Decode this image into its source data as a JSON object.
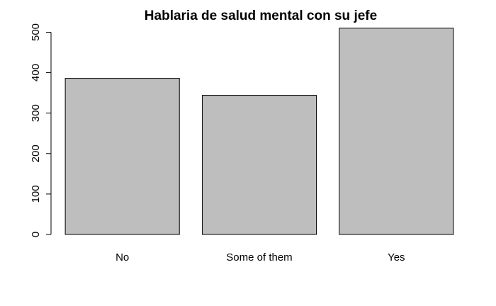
{
  "chart_data": {
    "type": "bar",
    "title": "Hablaria de salud mental con su jefe",
    "xlabel": "",
    "ylabel": "",
    "categories": [
      "No",
      "Some of them",
      "Yes"
    ],
    "values": [
      386,
      344,
      510
    ],
    "ylim": [
      0,
      500
    ],
    "yticks": [
      0,
      100,
      200,
      300,
      400,
      500
    ],
    "bar_color": "#bebebe",
    "grid": false
  }
}
